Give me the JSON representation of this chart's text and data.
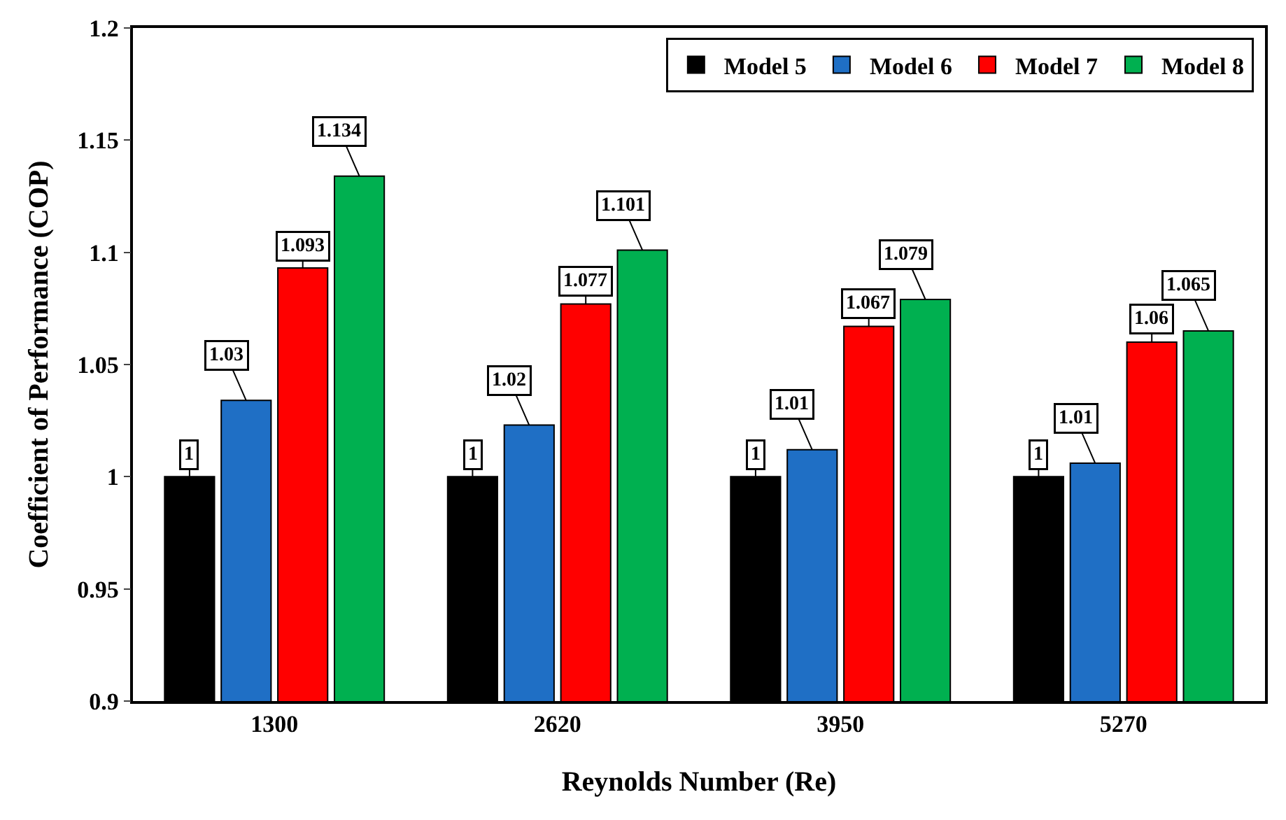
{
  "chart_data": {
    "type": "bar",
    "xlabel": "Reynolds Number (Re)",
    "ylabel": "Coefficient of Performance (COP)",
    "categories": [
      "1300",
      "2620",
      "3950",
      "5270"
    ],
    "series": [
      {
        "name": "Model 5",
        "color": "#000000",
        "values": [
          1,
          1,
          1,
          1
        ],
        "value_labels": [
          "1",
          "1",
          "1",
          "1"
        ]
      },
      {
        "name": "Model 6",
        "color": "#1f6fc5",
        "values": [
          1.034,
          1.023,
          1.012,
          1.006
        ],
        "value_labels": [
          "1.03",
          "1.02",
          "1.01",
          "1.01"
        ]
      },
      {
        "name": "Model 7",
        "color": "#ff0000",
        "values": [
          1.093,
          1.077,
          1.067,
          1.06
        ],
        "value_labels": [
          "1.093",
          "1.077",
          "1.067",
          "1.06"
        ]
      },
      {
        "name": "Model 8",
        "color": "#00b050",
        "values": [
          1.134,
          1.101,
          1.079,
          1.065
        ],
        "value_labels": [
          "1.134",
          "1.101",
          "1.079",
          "1.065"
        ]
      }
    ],
    "ylim": [
      0.9,
      1.2
    ],
    "yticks": [
      0.9,
      0.95,
      1,
      1.05,
      1.1,
      1.15,
      1.2
    ],
    "legend": "top right"
  }
}
